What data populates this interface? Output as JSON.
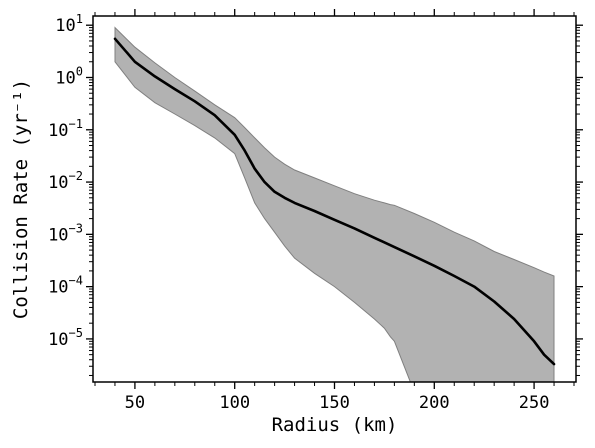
{
  "chart_data": {
    "type": "area",
    "xlabel": "Radius (km)",
    "ylabel": "Collision Rate (yr⁻¹)",
    "y_scale": "log",
    "xlim": [
      29,
      271
    ],
    "ylim": [
      1.5e-06,
      15
    ],
    "x_ticks": [
      50,
      100,
      150,
      200,
      250
    ],
    "y_ticks": [
      1e-05,
      0.0001,
      0.001,
      0.01,
      0.1,
      1,
      10
    ],
    "y_tick_labels": [
      {
        "base": "10",
        "exp": "-5"
      },
      {
        "base": "10",
        "exp": "-4"
      },
      {
        "base": "10",
        "exp": "-3"
      },
      {
        "base": "10",
        "exp": "-2"
      },
      {
        "base": "10",
        "exp": "-1"
      },
      {
        "base": "10",
        "exp": "0"
      },
      {
        "base": "10",
        "exp": "1"
      }
    ],
    "grid": false,
    "colors": {
      "line": "#000000",
      "band_fill": "#b2b2b2",
      "band_edge": "#808080"
    },
    "series": [
      {
        "x": [
          40,
          50,
          60,
          70,
          80,
          90,
          100,
          105,
          110,
          115,
          120,
          125,
          130,
          140,
          150,
          160,
          170,
          180,
          190,
          200,
          210,
          220,
          230,
          240,
          250,
          255,
          260
        ],
        "y": [
          5.5,
          2.0,
          1.05,
          0.6,
          0.35,
          0.19,
          0.08,
          0.04,
          0.018,
          0.01,
          0.0065,
          0.005,
          0.004,
          0.0028,
          0.0019,
          0.0013,
          0.00086,
          0.00057,
          0.00038,
          0.00025,
          0.00016,
          0.0001,
          5.2e-05,
          2.4e-05,
          9e-06,
          5e-06,
          3.3e-06
        ]
      }
    ],
    "band": {
      "x": [
        40,
        50,
        60,
        70,
        80,
        90,
        100,
        105,
        110,
        115,
        120,
        125,
        130,
        140,
        150,
        160,
        170,
        175,
        178,
        180,
        190,
        200,
        210,
        220,
        230,
        240,
        250,
        255,
        260
      ],
      "upper": [
        9.0,
        3.8,
        1.9,
        1.0,
        0.55,
        0.3,
        0.17,
        0.11,
        0.07,
        0.045,
        0.03,
        0.022,
        0.017,
        0.012,
        0.0085,
        0.006,
        0.0045,
        0.004,
        0.0037,
        0.0036,
        0.0025,
        0.0017,
        0.0011,
        0.00075,
        0.00047,
        0.00033,
        0.00023,
        0.00019,
        0.00016
      ],
      "lower": [
        2.0,
        0.65,
        0.33,
        0.2,
        0.12,
        0.07,
        0.035,
        0.012,
        0.004,
        0.002,
        0.0011,
        0.0006,
        0.00035,
        0.00018,
        0.0001,
        5e-05,
        2.4e-05,
        1.6e-05,
        1.1e-05,
        9e-06,
        null,
        null,
        null,
        null,
        null,
        null,
        null,
        null,
        null
      ]
    }
  }
}
